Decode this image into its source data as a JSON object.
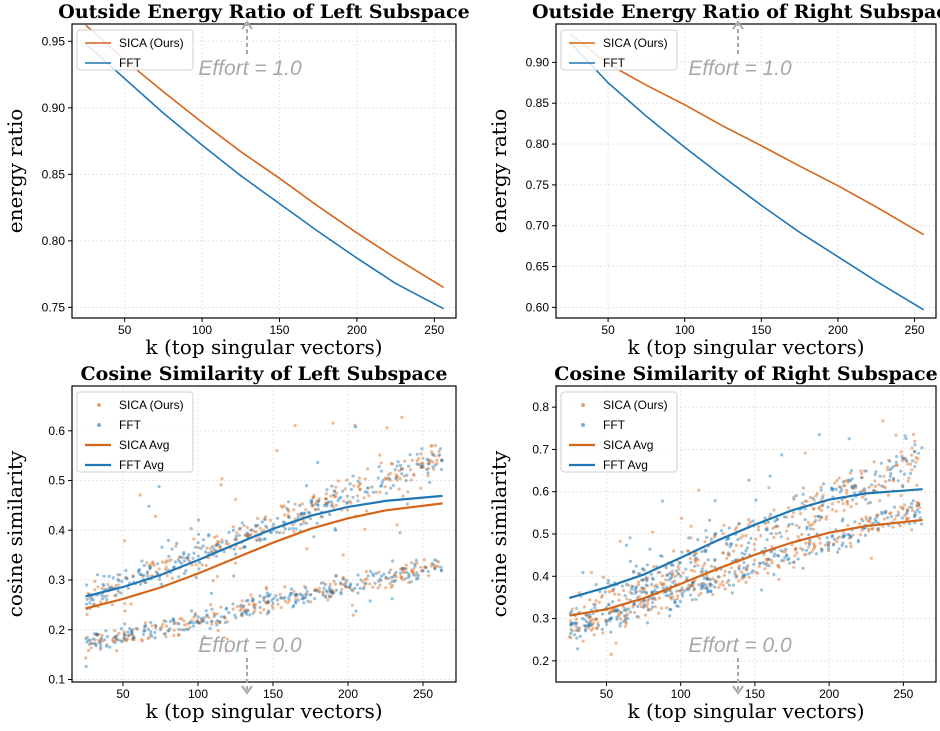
{
  "colors": {
    "sica": "#d4661b",
    "fft": "#1f77b4",
    "annotation": "#a8a8a8"
  },
  "charts": [
    {
      "id": "tl",
      "title": "Outside Energy Ratio of Left Subspace",
      "xlabel": "k (top singular vectors)",
      "ylabel": "energy ratio",
      "xticks": [
        50,
        100,
        150,
        200,
        250
      ],
      "yticks": [
        "0.75",
        "0.80",
        "0.85",
        "0.90",
        "0.95"
      ],
      "legend": [
        "SICA (Ours)",
        "FFT"
      ],
      "annotation": "Effort = 1.0"
    },
    {
      "id": "tr",
      "title": "Outside Energy Ratio of Right Subspace",
      "xlabel": "k (top singular vectors)",
      "ylabel": "energy ratio",
      "xticks": [
        50,
        100,
        150,
        200,
        250
      ],
      "yticks": [
        "0.60",
        "0.65",
        "0.70",
        "0.75",
        "0.80",
        "0.85",
        "0.90"
      ],
      "legend": [
        "SICA (Ours)",
        "FFT"
      ],
      "annotation": "Effort = 1.0"
    },
    {
      "id": "bl",
      "title": "Cosine Similarity of Left Subspace",
      "xlabel": "k (top singular vectors)",
      "ylabel": "cosine similarity",
      "xticks": [
        50,
        100,
        150,
        200,
        250
      ],
      "yticks": [
        "0.1",
        "0.2",
        "0.3",
        "0.4",
        "0.5",
        "0.6"
      ],
      "legend": [
        "SICA (Ours)",
        "FFT",
        "SICA Avg",
        "FFT Avg"
      ],
      "annotation": "Effort = 0.0"
    },
    {
      "id": "br",
      "title": "Cosine Similarity of Right Subspace",
      "xlabel": "k (top singular vectors)",
      "ylabel": "cosine similarity",
      "xticks": [
        50,
        100,
        150,
        200,
        250
      ],
      "yticks": [
        "0.2",
        "0.3",
        "0.4",
        "0.5",
        "0.6",
        "0.7",
        "0.8"
      ],
      "legend": [
        "SICA (Ours)",
        "FFT",
        "SICA Avg",
        "FFT Avg"
      ],
      "annotation": "Effort = 0.0"
    }
  ],
  "chart_data": [
    {
      "type": "line",
      "title": "Outside Energy Ratio of Left Subspace",
      "xlabel": "k (top singular vectors)",
      "ylabel": "energy ratio",
      "xlim": [
        16,
        264
      ],
      "ylim": [
        0.742,
        0.963
      ],
      "grid": true,
      "legend_position": "top-left",
      "series": [
        {
          "name": "SICA (Ours)",
          "x": [
            25,
            50,
            75,
            100,
            125,
            150,
            175,
            200,
            225,
            256
          ],
          "y": [
            0.962,
            0.936,
            0.912,
            0.889,
            0.867,
            0.847,
            0.826,
            0.806,
            0.787,
            0.765
          ]
        },
        {
          "name": "FFT",
          "x": [
            25,
            50,
            75,
            100,
            125,
            150,
            175,
            200,
            225,
            256
          ],
          "y": [
            0.948,
            0.922,
            0.896,
            0.872,
            0.849,
            0.828,
            0.807,
            0.787,
            0.768,
            0.749
          ]
        }
      ]
    },
    {
      "type": "line",
      "title": "Outside Energy Ratio of Right Subspace",
      "xlabel": "k (top singular vectors)",
      "ylabel": "energy ratio",
      "xlim": [
        16,
        264
      ],
      "ylim": [
        0.587,
        0.947
      ],
      "grid": true,
      "legend_position": "top-left",
      "series": [
        {
          "name": "SICA (Ours)",
          "x": [
            25,
            50,
            75,
            100,
            125,
            150,
            175,
            200,
            225,
            256
          ],
          "y": [
            0.935,
            0.898,
            0.872,
            0.848,
            0.822,
            0.798,
            0.773,
            0.749,
            0.723,
            0.689
          ]
        },
        {
          "name": "FFT",
          "x": [
            25,
            50,
            75,
            100,
            125,
            150,
            175,
            200,
            225,
            256
          ],
          "y": [
            0.925,
            0.875,
            0.834,
            0.796,
            0.76,
            0.725,
            0.692,
            0.662,
            0.632,
            0.597
          ]
        }
      ]
    },
    {
      "type": "scatter",
      "title": "Cosine Similarity of Left Subspace",
      "xlabel": "k (top singular vectors)",
      "ylabel": "cosine similarity",
      "xlim": [
        16,
        272
      ],
      "ylim": [
        0.095,
        0.69
      ],
      "grid": true,
      "legend_position": "top-left",
      "series": [
        {
          "name": "SICA Avg",
          "x": [
            25,
            50,
            75,
            100,
            125,
            150,
            175,
            200,
            225,
            263
          ],
          "y": [
            0.243,
            0.262,
            0.285,
            0.313,
            0.344,
            0.375,
            0.403,
            0.424,
            0.44,
            0.454
          ]
        },
        {
          "name": "FFT Avg",
          "x": [
            25,
            50,
            75,
            100,
            125,
            150,
            175,
            200,
            225,
            263
          ],
          "y": [
            0.267,
            0.286,
            0.31,
            0.34,
            0.372,
            0.403,
            0.429,
            0.447,
            0.459,
            0.469
          ]
        }
      ],
      "scatter_series": [
        "SICA (Ours)",
        "FFT"
      ],
      "scatter_bands": [
        {
          "x": [
            25,
            263
          ],
          "y": [
            0.17,
            0.33
          ],
          "spread": 0.03
        },
        {
          "x": [
            25,
            263
          ],
          "y": [
            0.26,
            0.55
          ],
          "spread": 0.045
        }
      ]
    },
    {
      "type": "scatter",
      "title": "Cosine Similarity of Right Subspace",
      "xlabel": "k (top singular vectors)",
      "ylabel": "cosine similarity",
      "xlim": [
        16,
        272
      ],
      "ylim": [
        0.15,
        0.85
      ],
      "grid": true,
      "legend_position": "top-left",
      "series": [
        {
          "name": "SICA Avg",
          "x": [
            25,
            50,
            75,
            100,
            125,
            150,
            175,
            200,
            225,
            263
          ],
          "y": [
            0.307,
            0.322,
            0.348,
            0.382,
            0.418,
            0.451,
            0.48,
            0.503,
            0.519,
            0.533
          ]
        },
        {
          "name": "FFT Avg",
          "x": [
            25,
            50,
            75,
            100,
            125,
            150,
            175,
            200,
            225,
            263
          ],
          "y": [
            0.349,
            0.374,
            0.404,
            0.444,
            0.485,
            0.522,
            0.556,
            0.581,
            0.596,
            0.606
          ]
        }
      ],
      "scatter_series": [
        "SICA (Ours)",
        "FFT"
      ],
      "scatter_bands": [
        {
          "x": [
            25,
            263
          ],
          "y": [
            0.27,
            0.56
          ],
          "spread": 0.05
        },
        {
          "x": [
            25,
            263
          ],
          "y": [
            0.3,
            0.68
          ],
          "spread": 0.08
        }
      ]
    }
  ]
}
